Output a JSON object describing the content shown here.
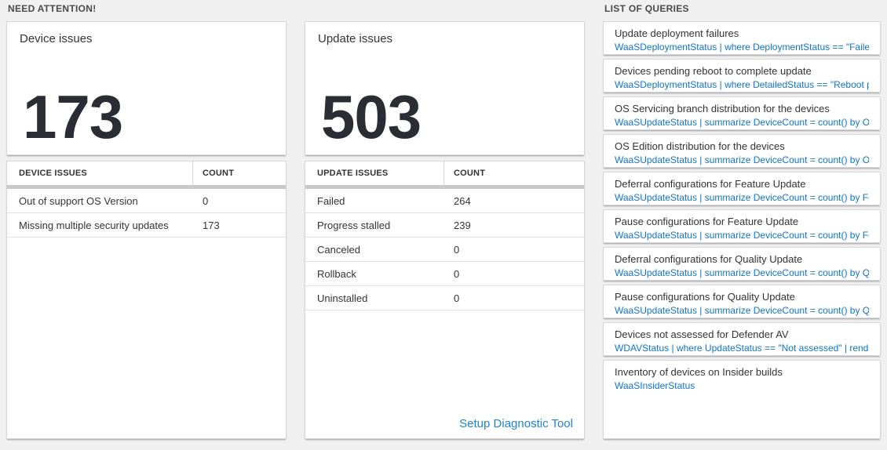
{
  "colors": {
    "page_bg": "#f0f0f0",
    "card_bg": "#ffffff",
    "big_number": "#2a2e34",
    "query_link_blue": "#1173c4",
    "setup_link_blue": "#1e82d4",
    "grid_bar_gray": "#c9c9c9"
  },
  "need_attention": {
    "header": "NEED ATTENTION!",
    "device_tile": {
      "title": "Device issues",
      "count": "173"
    },
    "device_table": {
      "col_issue": "DEVICE ISSUES",
      "col_count": "COUNT",
      "rows": [
        {
          "issue": "Out of support OS Version",
          "count": "0"
        },
        {
          "issue": "Missing multiple security updates",
          "count": "173"
        }
      ]
    },
    "update_tile": {
      "title": "Update issues",
      "count": "503"
    },
    "update_table": {
      "col_issue": "UPDATE ISSUES",
      "col_count": "COUNT",
      "rows": [
        {
          "issue": "Failed",
          "count": "264"
        },
        {
          "issue": "Progress stalled",
          "count": "239"
        },
        {
          "issue": "Canceled",
          "count": "0"
        },
        {
          "issue": "Rollback",
          "count": "0"
        },
        {
          "issue": "Uninstalled",
          "count": "0"
        }
      ],
      "footer_link": "Setup Diagnostic Tool"
    }
  },
  "queries_panel": {
    "header": "LIST OF QUERIES",
    "items": [
      {
        "title": "Update deployment failures",
        "query": "WaaSDeploymentStatus | where DeploymentStatus == \"Failed\" |..."
      },
      {
        "title": "Devices pending reboot to complete update",
        "query": "WaaSDeploymentStatus | where DetailedStatus == \"Reboot pend..."
      },
      {
        "title": "OS Servicing branch distribution for the devices",
        "query": "WaaSUpdateStatus | summarize DeviceCount = count() by OSSer..."
      },
      {
        "title": "OS Edition distribution for the devices",
        "query": "WaaSUpdateStatus | summarize DeviceCount = count() by OSEdit..."
      },
      {
        "title": "Deferral configurations for Feature Update",
        "query": "WaaSUpdateStatus | summarize DeviceCount = count() by Featur..."
      },
      {
        "title": "Pause configurations for Feature Update",
        "query": "WaaSUpdateStatus | summarize DeviceCount = count() by Featur..."
      },
      {
        "title": "Deferral configurations for Quality Update",
        "query": "WaaSUpdateStatus | summarize DeviceCount = count() by Qualit..."
      },
      {
        "title": "Pause configurations for Quality Update",
        "query": "WaaSUpdateStatus | summarize DeviceCount = count() by Qualit..."
      },
      {
        "title": "Devices not assessed for Defender AV",
        "query": "WDAVStatus | where UpdateStatus == \"Not assessed\" | render ta..."
      },
      {
        "title": "Inventory of devices on Insider builds",
        "query": "WaaSInsiderStatus"
      }
    ]
  }
}
